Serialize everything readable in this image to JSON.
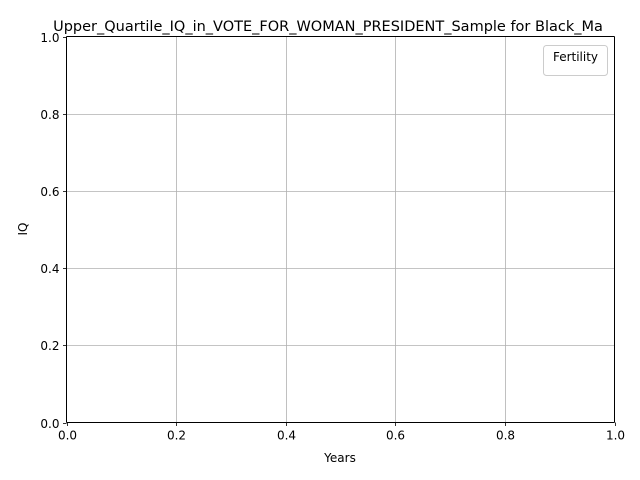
{
  "chart_data": {
    "type": "line",
    "title": "Upper_Quartile_IQ_in_VOTE_FOR_WOMAN_PRESIDENT_Sample for Black_Ma",
    "xlabel": "Years",
    "ylabel": "IQ",
    "xlim": [
      0.0,
      1.0
    ],
    "ylim": [
      0.0,
      1.0
    ],
    "x_ticks": [
      0.0,
      0.2,
      0.4,
      0.6,
      0.8,
      1.0
    ],
    "y_ticks": [
      0.0,
      0.2,
      0.4,
      0.6,
      0.8,
      1.0
    ],
    "x_tick_labels": [
      "0.0",
      "0.2",
      "0.4",
      "0.6",
      "0.8",
      "1.0"
    ],
    "y_tick_labels": [
      "0.0",
      "0.2",
      "0.4",
      "0.6",
      "0.8",
      "1.0"
    ],
    "grid": true,
    "legend": {
      "title": "Fertility",
      "position": "top-right",
      "entries": []
    },
    "series": [],
    "colors": {
      "grid": "#b0b0b0",
      "axis": "#000000",
      "legend_border": "#cccccc",
      "background": "#ffffff"
    }
  }
}
